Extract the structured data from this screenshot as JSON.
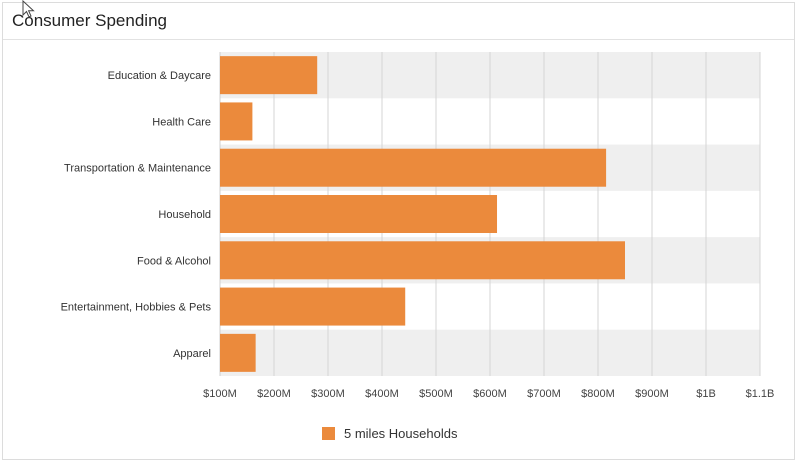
{
  "page": {
    "title": "Consumer Spending"
  },
  "chart_data": {
    "type": "bar",
    "orientation": "horizontal",
    "title": "Consumer Spending",
    "categories": [
      "Education & Daycare",
      "Health Care",
      "Transportation & Maintenance",
      "Household",
      "Food & Alcohol",
      "Entertainment, Hobbies & Pets",
      "Apparel"
    ],
    "series": [
      {
        "name": "5 miles Households",
        "color": "#EB8A3C",
        "values": [
          280000000,
          160000000,
          815000000,
          613000000,
          850000000,
          443000000,
          166000000
        ]
      }
    ],
    "xlim": [
      100000000,
      1100000000
    ],
    "x_ticks": [
      100000000,
      200000000,
      300000000,
      400000000,
      500000000,
      600000000,
      700000000,
      800000000,
      900000000,
      1000000000,
      1100000000
    ],
    "x_tick_labels": [
      "$100M",
      "$200M",
      "$300M",
      "$400M",
      "$500M",
      "$600M",
      "$700M",
      "$800M",
      "$900M",
      "$1B",
      "$1.1B"
    ],
    "grid": true,
    "band_color": "#efefef",
    "legend_position": "bottom-center"
  }
}
